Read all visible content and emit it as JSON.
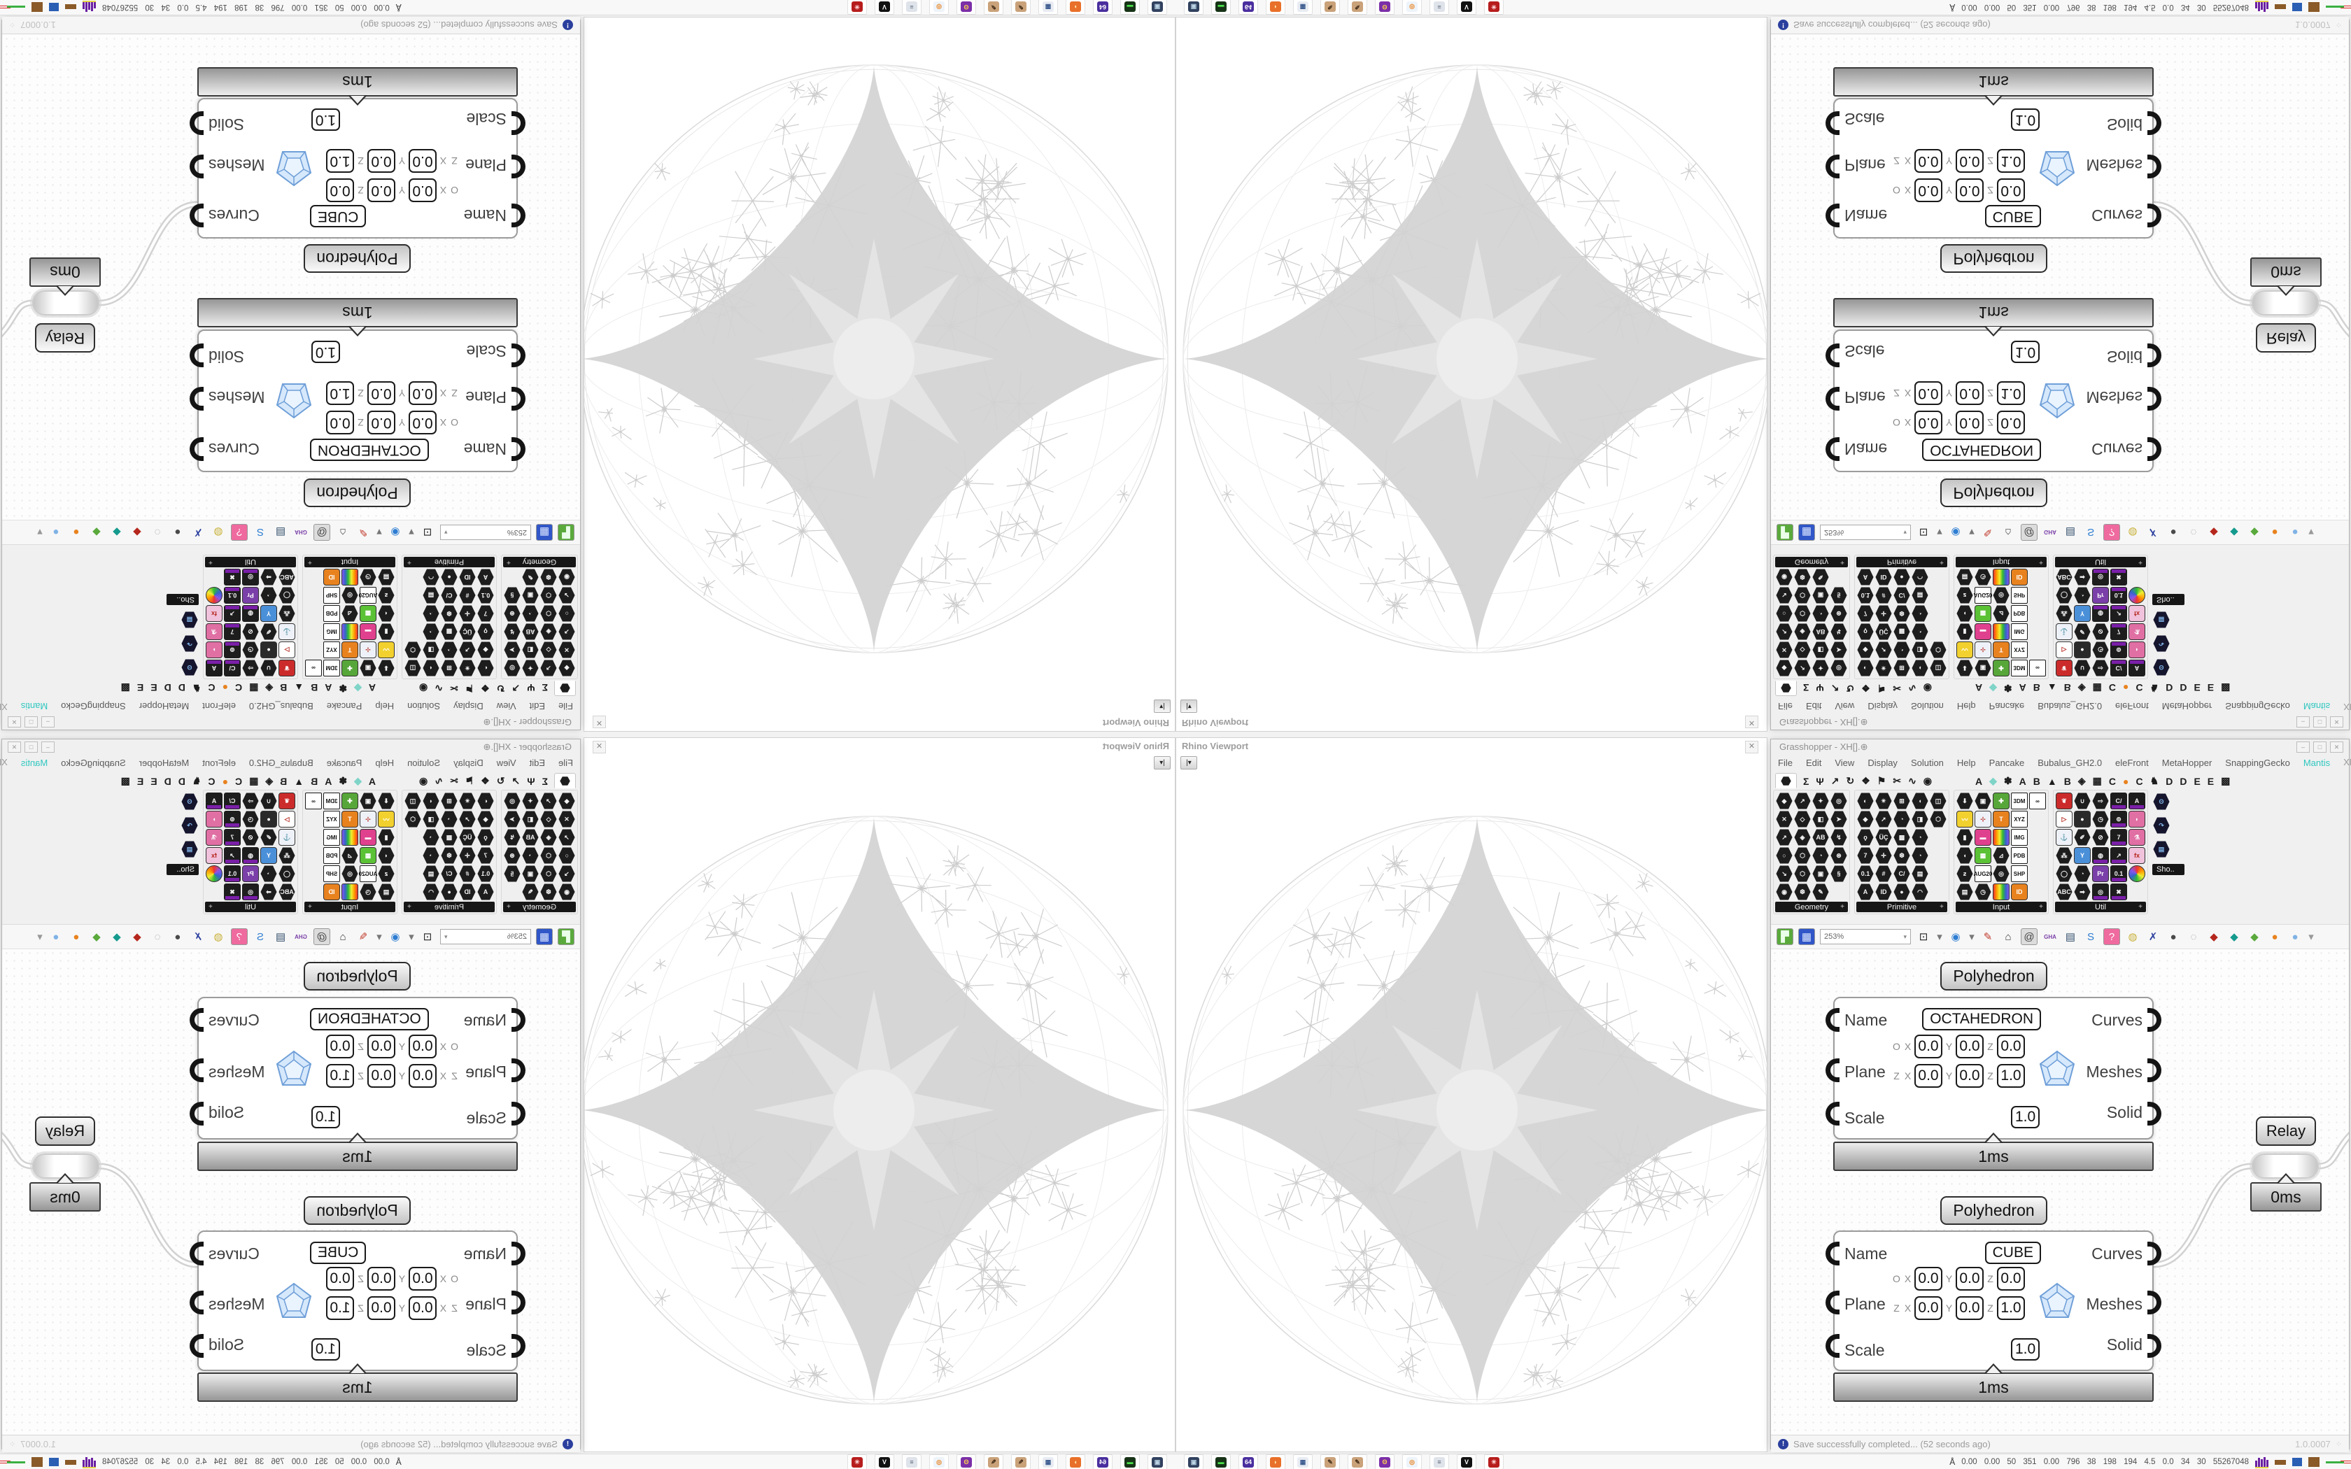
{
  "viewport": {
    "title": "Rhino Viewport",
    "close": "✕",
    "collapse_icon": "|▾"
  },
  "gh_window": {
    "title": "Grasshopper - XH[].⊕",
    "window_buttons": [
      "–",
      "□",
      "✕"
    ],
    "menu": {
      "items": [
        "File",
        "Edit",
        "View",
        "Display",
        "Solution",
        "Help",
        "Pancake",
        "Bubalus_GH2.0",
        "eleFront",
        "MetaHopper",
        "SnappingGecko",
        "Mantis"
      ],
      "highlight": "Mantis",
      "highlight_color": "#2fc7c0",
      "right_text": "XH[].⊕"
    },
    "tabs": [
      {
        "name": "tab-params",
        "hex": true
      },
      {
        "name": "tab-maths",
        "g": "Σ"
      },
      {
        "name": "tab-sets",
        "g": "Ψ"
      },
      {
        "name": "tab-vector",
        "g": "↗"
      },
      {
        "name": "tab-curve",
        "g": "↻"
      },
      {
        "name": "tab-surface",
        "g": "❖"
      },
      {
        "name": "tab-mesh",
        "g": "⚑"
      },
      {
        "name": "tab-intersect",
        "g": "✂"
      },
      {
        "name": "tab-transform",
        "g": "∿"
      },
      {
        "name": "tab-display",
        "g": "◉"
      },
      {
        "spacer": true
      },
      {
        "name": "tab-plugin-a1",
        "g": "A"
      },
      {
        "name": "tab-plugin-diamond",
        "g": "◆",
        "c": "#7fd4c8"
      },
      {
        "name": "tab-plugin-flower",
        "g": "✽"
      },
      {
        "name": "tab-plugin-a2",
        "g": "A"
      },
      {
        "name": "tab-plugin-b1",
        "g": "B"
      },
      {
        "name": "tab-plugin-mountain",
        "g": "▲"
      },
      {
        "name": "tab-plugin-b2",
        "g": "B"
      },
      {
        "name": "tab-plugin-shield",
        "g": "◈"
      },
      {
        "name": "tab-plugin-grid",
        "g": "▦"
      },
      {
        "name": "tab-plugin-c1",
        "g": "C"
      },
      {
        "name": "tab-plugin-orange-dot",
        "g": "●",
        "c": "#e8821e"
      },
      {
        "name": "tab-plugin-c2",
        "g": "C"
      },
      {
        "name": "tab-plugin-bird",
        "g": "♞"
      },
      {
        "name": "tab-plugin-d1",
        "g": "D"
      },
      {
        "name": "tab-plugin-d2",
        "g": "D"
      },
      {
        "name": "tab-plugin-e1",
        "g": "E"
      },
      {
        "name": "tab-plugin-e2",
        "g": "E"
      },
      {
        "name": "tab-plugin-dots",
        "g": "▩"
      }
    ],
    "palette": {
      "panels": [
        {
          "name": "Geometry",
          "expand": "+",
          "rows": [
            [
              "h:◆",
              "h:↗",
              "h:✦",
              "h:◎"
            ],
            [
              "h:✕",
              "h:◇",
              "h:◧",
              "h:➤"
            ],
            [
              "h:↗",
              "h:◈",
              "h:AB",
              "h:↯"
            ],
            [
              "h:○",
              "h:⬡",
              "h:◔",
              "h:⊛"
            ],
            [
              "h:↘",
              "h:⬡",
              "h:▣",
              "h:§"
            ],
            [
              "h:◉",
              "h:❆",
              "h:✎"
            ]
          ]
        },
        {
          "name": "Primitive",
          "expand": "+",
          "rows": [
            [
              "h:◐",
              "h:✴",
              "h:⊞",
              "h:◖",
              "h:◫"
            ],
            [
              "h:◆",
              "h:➚",
              "h:◔",
              "h:◨",
              "h:⬡"
            ],
            [
              "h:ϙ",
              "h:ÜÇ",
              "h:▩",
              "h:◔"
            ],
            [
              "h:7",
              "h:✛",
              "h:❆",
              "h:◔"
            ],
            [
              "h:0.1",
              "h:#",
              "h:C/",
              "h:▤"
            ],
            [
              "h:A",
              "h:ID",
              "h:●",
              "h:◠"
            ]
          ]
        },
        {
          "name": "Input",
          "expand": "+",
          "rows": [
            [
              "h:⬇",
              "h:▣",
              "k:#57a639:✚",
              "c:3DM",
              "c:∞"
            ],
            [
              "k:#f2d12e:〰",
              "k:#eef2f8:⊹",
              "k:#e8821e:T",
              "c:XYZ"
            ],
            [
              "h:▮",
              "k:#e0418e:▬",
              "r:rainbow",
              "c:IMG"
            ],
            [
              "h:◖",
              "k:#5bc236:▦",
              "h:⊿",
              "c:PDB"
            ],
            [
              "h:ƶ",
              "c:AUG20",
              "h:◎",
              "c:SHP"
            ],
            [
              "h:▤",
              "h:◷",
              "r:rainbow",
              "k:#e8821e:ID"
            ]
          ]
        },
        {
          "name": "Util",
          "expand": "+",
          "rows": [
            [
              "k:#cc2b2b:❦",
              "h:∪",
              "h:⇨",
              "p:C/",
              "p:A"
            ],
            [
              "k:#fff:▷",
              "k:#2a2a2a:●",
              "h:◷",
              "p:⊚",
              "k:#e06fa4:◗"
            ],
            [
              "k:#eef2f8:⚓",
              "h:✐",
              "h:⊘",
              "p:7",
              "k:#e06fa4:⚗"
            ],
            [
              "h:⁂",
              "k:#4a90d9:Y",
              "p:◍",
              "p:↗",
              "k:#f0c2dc:fx"
            ],
            [
              "h:◯",
              "h:◔",
              "k:#7a3fa8:Pr",
              "p:0.1",
              "r:palette"
            ],
            [
              "h:ABC",
              "h:➡",
              "p:◎",
              "p:✖"
            ]
          ]
        },
        {
          "name": "",
          "expand": "",
          "rows": []
        }
      ],
      "overflow_icons": [
        "b:ʘ",
        "b:↷",
        "b:▤"
      ],
      "overflow_tooltip": "Sho.."
    },
    "toolbar": {
      "zoom": "253%",
      "left_buttons": [
        {
          "name": "open-file-button",
          "bg": "#5aa93c",
          "glyph": "▛",
          "fg": "#eaffea"
        },
        {
          "name": "save-file-button",
          "bg": "#3056c8",
          "glyph": "▦",
          "fg": "#dce6ff"
        }
      ],
      "buttons": [
        {
          "name": "zoom-extents-button",
          "glyph": "⊡",
          "fg": "#222"
        },
        {
          "name": "zoom-extents-dropdown",
          "glyph": "▾",
          "fg": "#777",
          "flat": true
        },
        {
          "name": "preview-eye-button",
          "glyph": "◉",
          "fg": "#2d7dd2"
        },
        {
          "name": "preview-eye-dropdown",
          "glyph": "▾",
          "fg": "#777",
          "flat": true
        },
        {
          "name": "draw-order-brush-button",
          "glyph": "✎",
          "fg": "#c03a2b"
        },
        {
          "name": "exit-door-button",
          "glyph": "⌂",
          "fg": "#3a3a3a"
        },
        {
          "name": "remote-at-button",
          "glyph": "@",
          "fg": "#444",
          "bg": "#dcdcdc"
        },
        {
          "name": "gha-installer-button",
          "glyph": "GHA",
          "fg": "#7a3fa8",
          "small": true
        },
        {
          "name": "locate-document-button",
          "glyph": "▤",
          "fg": "#35506e"
        },
        {
          "name": "search-button",
          "glyph": "S",
          "fg": "#2d7dd2"
        },
        {
          "name": "help-button",
          "glyph": "?",
          "fg": "#fff",
          "bg": "#ef6a9e"
        },
        {
          "name": "lightbulb-button",
          "glyph": "◍",
          "fg": "#c9b23c"
        },
        {
          "name": "cluster-button",
          "glyph": "✗",
          "fg": "#2b3f9e"
        },
        {
          "name": "preview-sphere-dark-button",
          "glyph": "●",
          "fg": "#4a4a4a"
        },
        {
          "name": "preview-sphere-wire-button",
          "glyph": "◌",
          "fg": "#9a9a9a"
        },
        {
          "name": "gem-red-button",
          "glyph": "◆",
          "fg": "#b5271d"
        },
        {
          "name": "gem-teal-button",
          "glyph": "◆",
          "fg": "#159a8e"
        },
        {
          "name": "gem-green-button",
          "glyph": "◆",
          "fg": "#5aa93c"
        },
        {
          "name": "ball-orange-button",
          "glyph": "●",
          "fg": "#e8821e"
        },
        {
          "name": "ball-blue-button",
          "glyph": "●",
          "fg": "#7fb2e5"
        },
        {
          "name": "toolbar-overflow-chevron",
          "glyph": "▾",
          "fg": "#999",
          "flat": true
        }
      ]
    },
    "statusbar": {
      "icon": "!",
      "message": "Save successfully completed... (52 seconds ago)",
      "version": "1.0.0007",
      "grip": "⁘"
    }
  },
  "canvas": {
    "components": [
      {
        "title": "Polyhedron",
        "time": "1ms",
        "name_label": "Name",
        "name_value": "OCTAHEDRON",
        "plane_label": "Plane",
        "scale_label": "Scale",
        "scale_value": "1.0",
        "out_curves": "Curves",
        "out_meshes": "Meshes",
        "out_solid": "Solid",
        "plane_rows": [
          [
            "O",
            "X",
            "0.0",
            "Y",
            "0.0",
            "Z",
            "0.0"
          ],
          [
            "Z",
            "X",
            "0.0",
            "Y",
            "0.0",
            "Z",
            "1.0"
          ]
        ]
      },
      {
        "title": "Polyhedron",
        "time": "1ms",
        "name_label": "Name",
        "name_value": "CUBE",
        "plane_label": "Plane",
        "scale_label": "Scale",
        "scale_value": "1.0",
        "out_curves": "Curves",
        "out_meshes": "Meshes",
        "out_solid": "Solid",
        "plane_rows": [
          [
            "O",
            "X",
            "0.0",
            "Y",
            "0.0",
            "Z",
            "0.0"
          ],
          [
            "Z",
            "X",
            "0.0",
            "Y",
            "0.0",
            "Z",
            "1.0"
          ]
        ]
      }
    ],
    "relay": {
      "label": "Relay",
      "time": "0ms"
    }
  },
  "taskbar": {
    "icons": [
      {
        "name": "taskbar-system-monitor-icon",
        "bg": "#31415f",
        "glyph": "▣",
        "fg": "#bcd4e6"
      },
      {
        "name": "taskbar-disk-tool-icon",
        "bg": "#173317",
        "glyph": "▬",
        "fg": "#4ae04a"
      },
      {
        "name": "taskbar-floppy-64-icon",
        "bg": "#4a2e9e",
        "glyph": "64",
        "fg": "#ffffff"
      },
      {
        "name": "taskbar-firefox-icon",
        "bg": "#e8702a",
        "glyph": "◗",
        "fg": "#ffe9b0"
      },
      {
        "name": "taskbar-calculator-icon",
        "bg": "#e8ecf2",
        "glyph": "▦",
        "fg": "#3a5a8e"
      },
      {
        "name": "taskbar-paint-1-icon",
        "bg": "#caa27a",
        "glyph": "✎",
        "fg": "#46301a"
      },
      {
        "name": "taskbar-paint-2-icon",
        "bg": "#caa27a",
        "glyph": "✎",
        "fg": "#46301a"
      },
      {
        "name": "taskbar-owl-app-icon",
        "bg": "#7b2fa8",
        "glyph": "ʘ",
        "fg": "#ffd54a"
      },
      {
        "name": "taskbar-blender-icon",
        "bg": "#eef4fa",
        "glyph": "◎",
        "fg": "#e8821e"
      },
      {
        "name": "taskbar-document-scroll-icon",
        "bg": "#dfe3ea",
        "glyph": "≡",
        "fg": "#5a6578"
      },
      {
        "name": "taskbar-wolf-player-icon",
        "bg": "#111111",
        "glyph": "V",
        "fg": "#ffffff"
      },
      {
        "name": "taskbar-red-gear-icon",
        "bg": "#b71c1c",
        "glyph": "✳",
        "fg": "#ffdddd"
      }
    ],
    "stats_icon": "Å",
    "stats": "0.00 0.00 50 351 0.00 796 38 198 194 4.5 0.0 34 30 55267048"
  }
}
